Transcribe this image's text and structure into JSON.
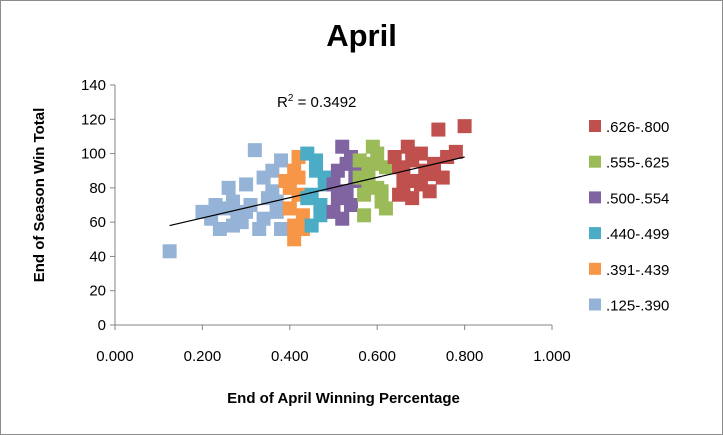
{
  "chart_data": {
    "type": "scatter",
    "title": "April",
    "xlabel": "End of April Winning Percentage",
    "ylabel": "End of Season Win Total",
    "xlim": [
      0,
      1
    ],
    "ylim": [
      0,
      140
    ],
    "x_ticks": [
      "0.000",
      "0.200",
      "0.400",
      "0.600",
      "0.800",
      "1.000"
    ],
    "y_ticks": [
      "0",
      "20",
      "40",
      "60",
      "80",
      "100",
      "120",
      "140"
    ],
    "grid": false,
    "legend_position": "right",
    "annotation": {
      "prefix": "R",
      "sup": "2",
      "suffix": " = 0.3492"
    },
    "trendline": {
      "x": [
        0.125,
        0.8
      ],
      "y": [
        58,
        98
      ]
    },
    "series": [
      {
        "name": ".626-.800",
        "color": "#c0504d",
        "points": [
          [
            0.64,
            98
          ],
          [
            0.65,
            92
          ],
          [
            0.66,
            88
          ],
          [
            0.67,
            104
          ],
          [
            0.68,
            96
          ],
          [
            0.69,
            84
          ],
          [
            0.7,
            100
          ],
          [
            0.71,
            90
          ],
          [
            0.72,
            78
          ],
          [
            0.73,
            94
          ],
          [
            0.74,
            114
          ],
          [
            0.75,
            86
          ],
          [
            0.76,
            98
          ],
          [
            0.78,
            101
          ],
          [
            0.8,
            116
          ],
          [
            0.66,
            80
          ],
          [
            0.7,
            82
          ],
          [
            0.68,
            74
          ],
          [
            0.73,
            88
          ],
          [
            0.65,
            76
          ]
        ]
      },
      {
        "name": ".555-.625",
        "color": "#9bbb59",
        "points": [
          [
            0.56,
            96
          ],
          [
            0.57,
            64
          ],
          [
            0.58,
            88
          ],
          [
            0.59,
            104
          ],
          [
            0.6,
            80
          ],
          [
            0.61,
            72
          ],
          [
            0.62,
            92
          ],
          [
            0.57,
            76
          ],
          [
            0.6,
            100
          ],
          [
            0.58,
            84
          ],
          [
            0.62,
            68
          ],
          [
            0.59,
            94
          ],
          [
            0.56,
            86
          ],
          [
            0.61,
            78
          ]
        ]
      },
      {
        "name": ".500-.554",
        "color": "#8064a2",
        "points": [
          [
            0.5,
            66
          ],
          [
            0.51,
            90
          ],
          [
            0.52,
            104
          ],
          [
            0.53,
            78
          ],
          [
            0.54,
            98
          ],
          [
            0.55,
            84
          ],
          [
            0.52,
            62
          ],
          [
            0.51,
            74
          ],
          [
            0.54,
            70
          ],
          [
            0.53,
            94
          ],
          [
            0.5,
            82
          ],
          [
            0.55,
            92
          ]
        ]
      },
      {
        "name": ".440-.499",
        "color": "#4bacc6",
        "points": [
          [
            0.44,
            100
          ],
          [
            0.45,
            76
          ],
          [
            0.46,
            90
          ],
          [
            0.47,
            64
          ],
          [
            0.48,
            82
          ],
          [
            0.45,
            58
          ],
          [
            0.46,
            96
          ],
          [
            0.47,
            70
          ],
          [
            0.48,
            86
          ],
          [
            0.44,
            74
          ]
        ]
      },
      {
        "name": ".391-.439",
        "color": "#f79646",
        "points": [
          [
            0.4,
            80
          ],
          [
            0.41,
            50
          ],
          [
            0.42,
            98
          ],
          [
            0.43,
            64
          ],
          [
            0.4,
            68
          ],
          [
            0.41,
            90
          ],
          [
            0.42,
            76
          ],
          [
            0.43,
            56
          ],
          [
            0.39,
            84
          ],
          [
            0.41,
            58
          ],
          [
            0.42,
            86
          ]
        ]
      },
      {
        "name": ".125-.390",
        "color": "#95b3d7",
        "points": [
          [
            0.125,
            43
          ],
          [
            0.2,
            66
          ],
          [
            0.22,
            62
          ],
          [
            0.24,
            56
          ],
          [
            0.25,
            68
          ],
          [
            0.26,
            80
          ],
          [
            0.27,
            72
          ],
          [
            0.28,
            64
          ],
          [
            0.29,
            60
          ],
          [
            0.3,
            66
          ],
          [
            0.32,
            102
          ],
          [
            0.33,
            56
          ],
          [
            0.34,
            86
          ],
          [
            0.35,
            74
          ],
          [
            0.36,
            78
          ],
          [
            0.37,
            66
          ],
          [
            0.38,
            96
          ],
          [
            0.38,
            56
          ],
          [
            0.31,
            70
          ],
          [
            0.27,
            58
          ],
          [
            0.34,
            62
          ],
          [
            0.36,
            90
          ],
          [
            0.23,
            70
          ],
          [
            0.3,
            82
          ],
          [
            0.37,
            72
          ]
        ]
      }
    ]
  }
}
